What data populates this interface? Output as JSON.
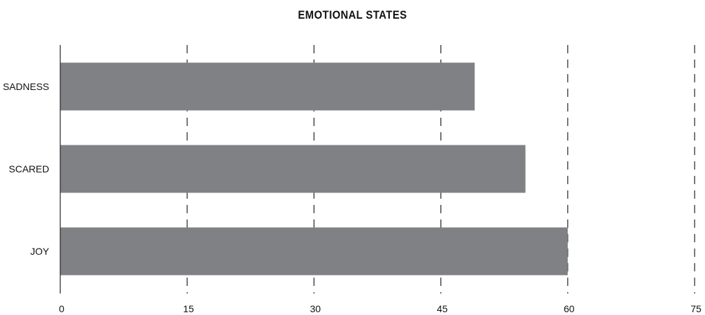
{
  "chart_data": {
    "type": "bar",
    "orientation": "horizontal",
    "title": "EMOTIONAL STATES",
    "xlabel": "",
    "ylabel": "",
    "categories": [
      "SADNESS",
      "SCARED",
      "JOY"
    ],
    "values": [
      49,
      55,
      60
    ],
    "xlim": [
      0,
      75
    ],
    "xticks": [
      "0",
      "15",
      "30",
      "45",
      "60",
      "75"
    ],
    "grid": "vertical dashed",
    "legend": "none",
    "colors": {
      "bar": "#808184",
      "axis": "#222222",
      "grid": "#222222",
      "text": "#111111"
    }
  }
}
